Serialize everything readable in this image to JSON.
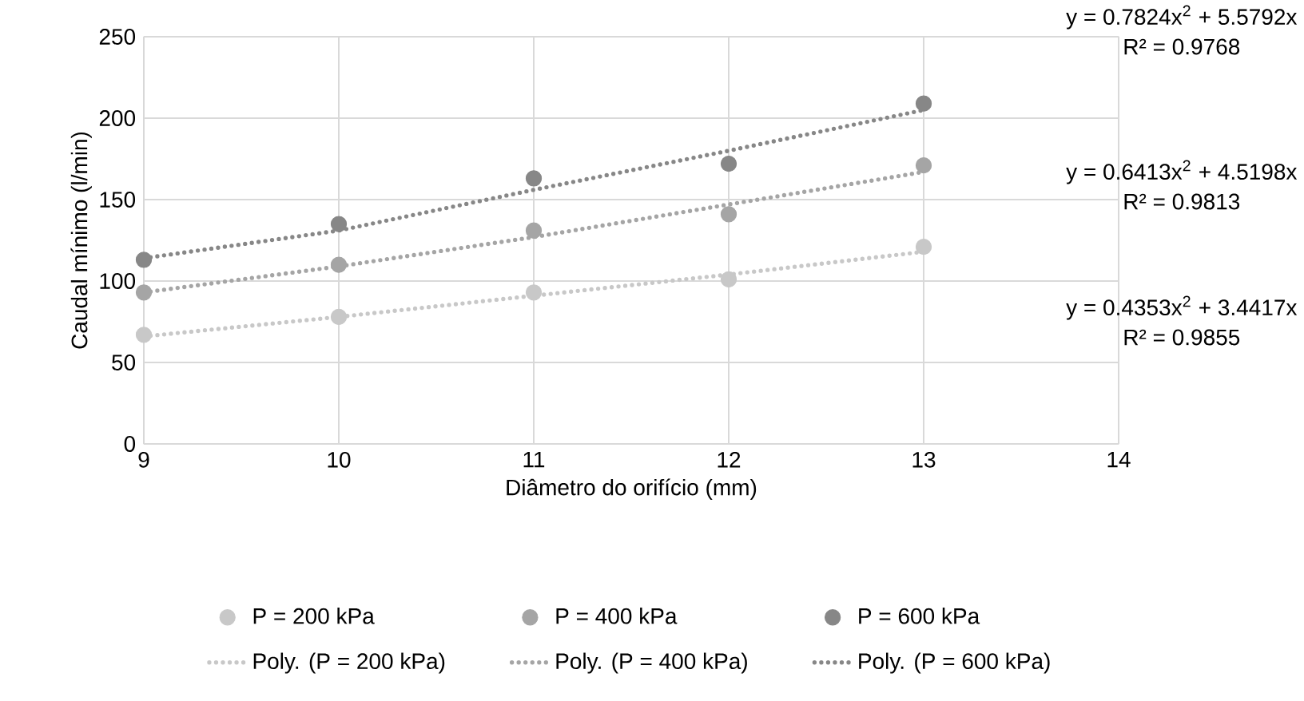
{
  "chart_data": {
    "type": "scatter",
    "xlabel": "Diâmetro do orifício (mm)",
    "ylabel": "Caudal mínimo  (l/min)",
    "xlim": [
      9,
      14
    ],
    "xticks": [
      9,
      10,
      11,
      12,
      13,
      14
    ],
    "ylim": [
      0,
      250
    ],
    "yticks": [
      0,
      50,
      100,
      150,
      200,
      250
    ],
    "grid": true,
    "legend": "bottom",
    "series": [
      {
        "name": "P = 200 kPa",
        "marker": "circle",
        "color": "#c8c8c8",
        "x": [
          9,
          10,
          11,
          12,
          13
        ],
        "values": [
          67,
          78,
          93,
          101,
          121
        ]
      },
      {
        "name": "P = 400 kPa",
        "marker": "circle",
        "color": "#a5a5a5",
        "x": [
          9,
          10,
          11,
          12,
          13
        ],
        "values": [
          93,
          110,
          131,
          141,
          171
        ]
      },
      {
        "name": "P = 600 kPa",
        "marker": "circle",
        "color": "#878787",
        "x": [
          9,
          10,
          11,
          12,
          13
        ],
        "values": [
          113,
          135,
          163,
          172,
          209
        ]
      },
      {
        "name": "Poly. (P = 200 kPa)",
        "type": "line",
        "line_style": "dotted",
        "color": "#c8c8c8",
        "x": [
          9,
          10,
          11,
          12,
          13
        ],
        "values": [
          66,
          78,
          91,
          104,
          118
        ]
      },
      {
        "name": "Poly. (P = 400 kPa)",
        "type": "line",
        "line_style": "dotted",
        "color": "#a5a5a5",
        "x": [
          9,
          10,
          11,
          12,
          13
        ],
        "values": [
          93,
          109,
          127,
          147,
          167
        ]
      },
      {
        "name": "Poly. (P = 600 kPa)",
        "type": "line",
        "line_style": "dotted",
        "color": "#878787",
        "x": [
          9,
          10,
          11,
          12,
          13
        ],
        "values": [
          114,
          131,
          156,
          180,
          205
        ]
      }
    ],
    "annotations": [
      "y = 0.7824x$^{2}$  + 5.5792x",
      "R² = 0.9768",
      "y = 0.6413x$^{2}$  + 4.5198x",
      "R² = 0.9813",
      "y = 0.4353x$^{2}$  + 3.4417x",
      "R² = 0.9855"
    ]
  }
}
